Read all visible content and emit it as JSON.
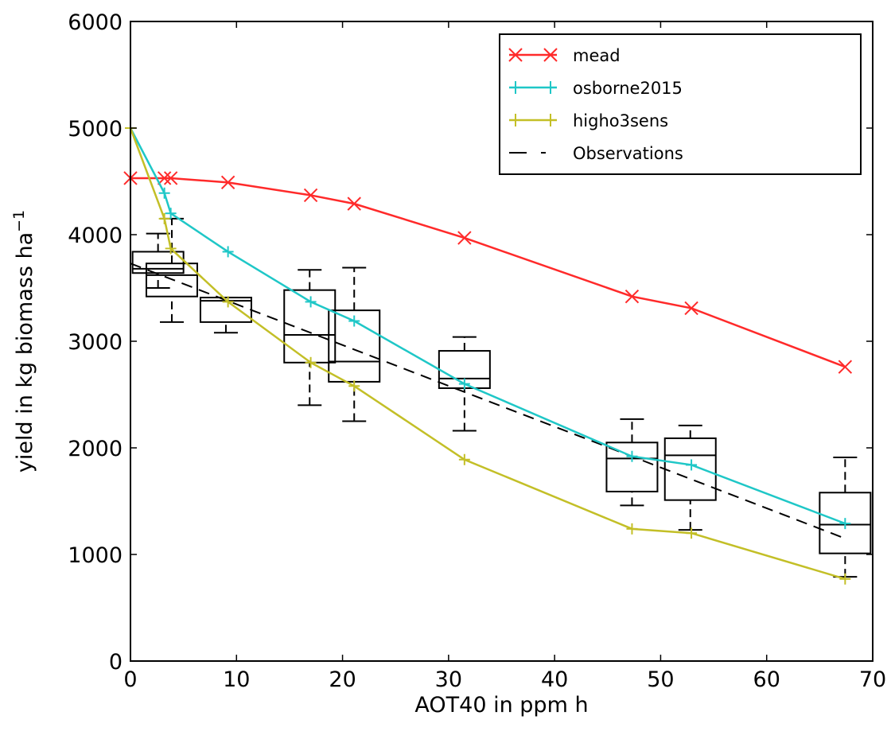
{
  "chart_data": {
    "type": "line",
    "xlabel": "AOT40 in ppm h",
    "ylabel": "yield in kg biomass ha",
    "ylabel_sup": "−1",
    "xlim": [
      0,
      70
    ],
    "ylim": [
      0,
      6000
    ],
    "xticks": [
      "0",
      "10",
      "20",
      "30",
      "40",
      "50",
      "60",
      "70"
    ],
    "yticks": [
      "0",
      "1000",
      "2000",
      "3000",
      "4000",
      "5000",
      "6000"
    ],
    "grid": false,
    "legend_position": "top-right",
    "series": [
      {
        "name": "mead",
        "color": "#ff2a2a",
        "marker": "x",
        "points": [
          [
            0,
            4530
          ],
          [
            3.2,
            4530
          ],
          [
            3.8,
            4530
          ],
          [
            9.2,
            4490
          ],
          [
            17,
            4370
          ],
          [
            21.1,
            4290
          ],
          [
            31.5,
            3970
          ],
          [
            47.3,
            3420
          ],
          [
            52.9,
            3310
          ],
          [
            67.4,
            2760
          ]
        ]
      },
      {
        "name": "osborne2015",
        "color": "#1fc7c7",
        "marker": "+",
        "points": [
          [
            0,
            5000
          ],
          [
            3.2,
            4390
          ],
          [
            3.8,
            4200
          ],
          [
            9.2,
            3840
          ],
          [
            17,
            3370
          ],
          [
            21.1,
            3190
          ],
          [
            31.5,
            2600
          ],
          [
            47.3,
            1920
          ],
          [
            52.9,
            1840
          ],
          [
            67.4,
            1290
          ]
        ]
      },
      {
        "name": "higho3sens",
        "color": "#c3bf27",
        "marker": "+",
        "points": [
          [
            0,
            5000
          ],
          [
            3.2,
            4150
          ],
          [
            3.8,
            3870
          ],
          [
            9.2,
            3370
          ],
          [
            17,
            2800
          ],
          [
            21.1,
            2580
          ],
          [
            31.5,
            1890
          ],
          [
            47.3,
            1240
          ],
          [
            52.9,
            1200
          ],
          [
            67.4,
            770
          ]
        ]
      }
    ],
    "observations": {
      "name": "Observations",
      "style": "dashed",
      "color": "#000000",
      "points": [
        [
          0,
          3730
        ],
        [
          67.4,
          1150
        ]
      ]
    },
    "boxplots": [
      {
        "x": 2.6,
        "whislo": 3500,
        "q1": 3640,
        "med": 3680,
        "q3": 3840,
        "whishi": 4010
      },
      {
        "x": 3.9,
        "whislo": 3180,
        "q1": 3420,
        "med": 3620,
        "q3": 3730,
        "whishi": 4150
      },
      {
        "x": 9.0,
        "whislo": 3080,
        "q1": 3180,
        "med": 3380,
        "q3": 3410,
        "whishi": 3410
      },
      {
        "x": 16.9,
        "whislo": 2400,
        "q1": 2800,
        "med": 3060,
        "q3": 3480,
        "whishi": 3670
      },
      {
        "x": 21.1,
        "whislo": 2250,
        "q1": 2620,
        "med": 2810,
        "q3": 3290,
        "whishi": 3690
      },
      {
        "x": 31.5,
        "whislo": 2160,
        "q1": 2560,
        "med": 2650,
        "q3": 2910,
        "whishi": 3040
      },
      {
        "x": 47.3,
        "whislo": 1460,
        "q1": 1590,
        "med": 1900,
        "q3": 2050,
        "whishi": 2270
      },
      {
        "x": 52.8,
        "whislo": 1230,
        "q1": 1510,
        "med": 1930,
        "q3": 2090,
        "whishi": 2210
      },
      {
        "x": 67.4,
        "whislo": 790,
        "q1": 1010,
        "med": 1280,
        "q3": 1580,
        "whishi": 1910
      }
    ]
  }
}
